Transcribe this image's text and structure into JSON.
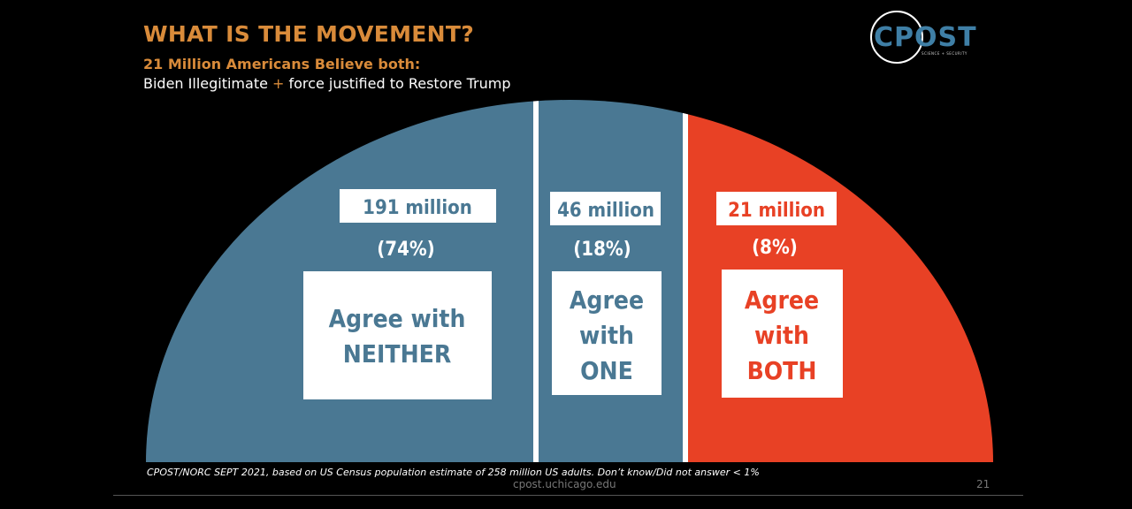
{
  "slide": {
    "title": "WHAT IS THE MOVEMENT?",
    "subtitle": "21 Million Americans Believe both:",
    "statement_part1": "Biden Illegitimate ",
    "statement_plus": "+",
    "statement_part2": " force justified to Restore Trump",
    "footnote": "CPOST/NORC SEPT 2021, based on US Census population estimate of 258 million US adults. Don’t know/Did not answer < 1%",
    "url": "cpost.uchicago.edu",
    "page_number": "21"
  },
  "logo": {
    "text": "CPOST",
    "tagline": "SCIENCE + SECURITY"
  },
  "colors": {
    "title_orange": "#d98b3a",
    "blue": "#4a7893",
    "red": "#e84125",
    "white": "#ffffff"
  },
  "chart_data": {
    "type": "pie",
    "subtype": "semicircle",
    "total_label": "258 million US adults",
    "segments": [
      {
        "count_label": "191 million",
        "pct_label": "(74%)",
        "label_line1": "Agree with",
        "label_line2": "NEITHER",
        "label_line3": "",
        "value": 74,
        "color": "#4a7893"
      },
      {
        "count_label": "46 million",
        "pct_label": "(18%)",
        "label_line1": "Agree",
        "label_line2": "with",
        "label_line3": "ONE",
        "value": 18,
        "color": "#4a7893"
      },
      {
        "count_label": "21 million",
        "pct_label": "(8%)",
        "label_line1": "Agree",
        "label_line2": "with",
        "label_line3": "BOTH",
        "value": 8,
        "color": "#e84125"
      }
    ]
  }
}
